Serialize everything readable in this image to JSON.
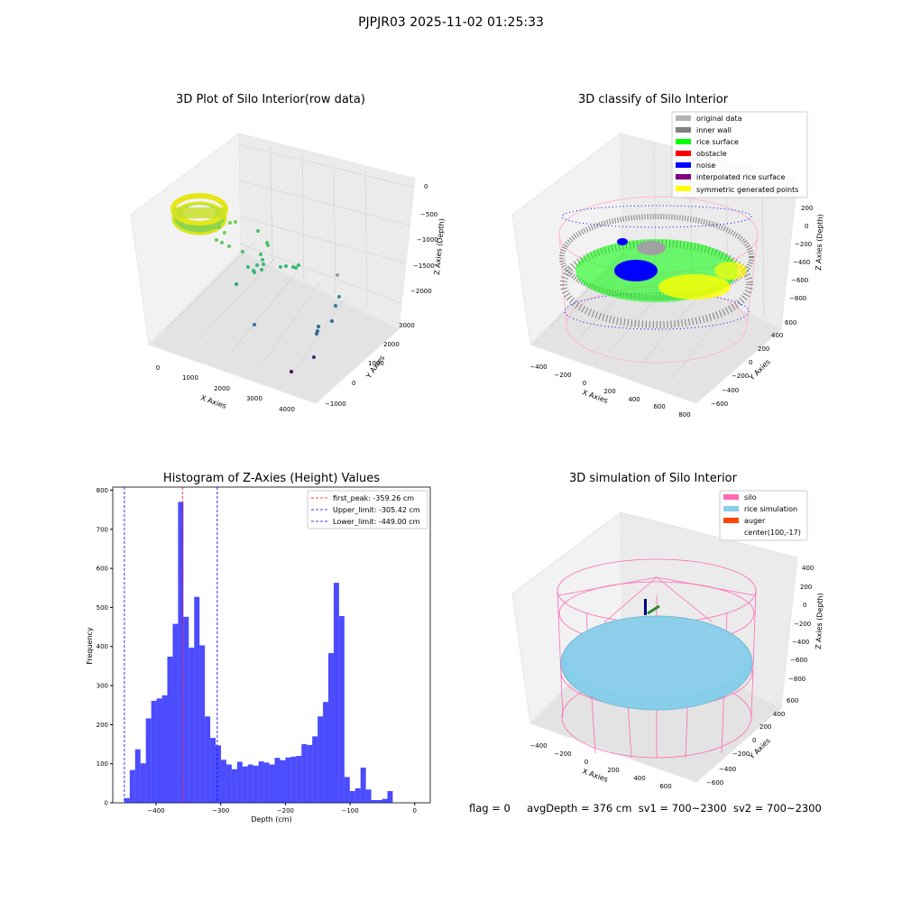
{
  "figure": {
    "suptitle": "PJPJR03 2025-11-02 01:25:33",
    "bottom_status": {
      "flag": "flag = 0",
      "avg_depth": "avgDepth = 376 cm",
      "sv1": "sv1 = 700~2300",
      "sv2": "sv2 = 700~2300"
    }
  },
  "chart_data": [
    {
      "id": "raw",
      "type": "scatter",
      "projection": "3d",
      "title": "3D Plot of Silo Interior(row data)",
      "xlabel": "X Axies",
      "ylabel": "Y Axies",
      "zlabel": "Z Axies (Depth)",
      "x_ticks": [
        "0",
        "1000",
        "2000",
        "3000",
        "4000"
      ],
      "y_ticks": [
        "−1000",
        "0",
        "1000",
        "2000",
        "3000"
      ],
      "z_ticks": [
        "0",
        "−500",
        "−1000",
        "−1500",
        "−2000"
      ],
      "grid": true
    },
    {
      "id": "classify",
      "type": "scatter",
      "projection": "3d",
      "title": "3D classify of Silo Interior",
      "xlabel": "X Axies",
      "ylabel": "Y Axies",
      "zlabel": "Z Axies (Depth)",
      "x_ticks": [
        "−400",
        "−200",
        "0",
        "200",
        "400",
        "600",
        "800"
      ],
      "y_ticks": [
        "−600",
        "−400",
        "−200",
        "0",
        "200",
        "400",
        "600"
      ],
      "z_ticks": [
        "200",
        "0",
        "−200",
        "−400",
        "−600",
        "−800"
      ],
      "legend_position": "top-right",
      "legend": [
        {
          "label": "original data",
          "color": "#b3b3b3"
        },
        {
          "label": "inner wall",
          "color": "#808080"
        },
        {
          "label": "rice surface",
          "color": "#00ff00"
        },
        {
          "label": "obstacle",
          "color": "#ff0000"
        },
        {
          "label": "noise",
          "color": "#0000ff"
        },
        {
          "label": "interpolated rice surface",
          "color": "#800080"
        },
        {
          "label": "symmetric generated points",
          "color": "#ffff00"
        }
      ],
      "grid": true
    },
    {
      "id": "histogram",
      "type": "bar",
      "title": "Histogram of Z-Axies (Height) Values",
      "xlabel": "Depth (cm)",
      "ylabel": "Frequency",
      "xlim": [
        -467,
        24
      ],
      "ylim": [
        0,
        808
      ],
      "x_ticks": [
        -400,
        -300,
        -200,
        -100,
        0
      ],
      "x_tick_labels": [
        "−400",
        "−300",
        "−200",
        "−100",
        "0"
      ],
      "y_ticks": [
        0,
        100,
        200,
        300,
        400,
        500,
        600,
        700,
        800
      ],
      "bin_width": 8.3,
      "bin_start": -449,
      "bar_color": "#0000ff",
      "values": [
        12,
        84,
        137,
        101,
        216,
        261,
        267,
        275,
        374,
        458,
        770,
        476,
        397,
        527,
        403,
        221,
        166,
        147,
        110,
        98,
        86,
        105,
        93,
        98,
        95,
        106,
        103,
        98,
        115,
        109,
        116,
        118,
        120,
        150,
        148,
        170,
        221,
        258,
        383,
        563,
        478,
        66,
        30,
        37,
        90,
        34,
        7,
        7,
        10,
        30
      ],
      "vlines": [
        {
          "label": "first_peak: -359.26 cm",
          "x": -359.26,
          "color": "#ff0000"
        },
        {
          "label": "Upper_limit: -305.42 cm",
          "x": -305.42,
          "color": "#0000ff"
        },
        {
          "label": "Lower_limit: -449.00 cm",
          "x": -449.0,
          "color": "#0000ff"
        }
      ],
      "legend_position": "top-right"
    },
    {
      "id": "simulation",
      "type": "surface",
      "projection": "3d",
      "title": "3D simulation of Silo Interior",
      "xlabel": "X Axies",
      "ylabel": "Y Axies",
      "zlabel": "Z Axies (Depth)",
      "x_ticks": [
        "−400",
        "−200",
        "0",
        "200",
        "400",
        "600"
      ],
      "y_ticks": [
        "−600",
        "−400",
        "−200",
        "0",
        "200",
        "400",
        "600"
      ],
      "z_ticks": [
        "400",
        "200",
        "0",
        "−200",
        "−400",
        "−600",
        "−800"
      ],
      "legend_position": "top-right",
      "legend": [
        {
          "label": "silo",
          "color": "#ff69b4"
        },
        {
          "label": "rice simulation",
          "color": "#87ceeb"
        },
        {
          "label": "auger",
          "color": "#ff4500"
        },
        {
          "label": "center(100,-17)",
          "color": ""
        }
      ],
      "grid": true
    }
  ]
}
